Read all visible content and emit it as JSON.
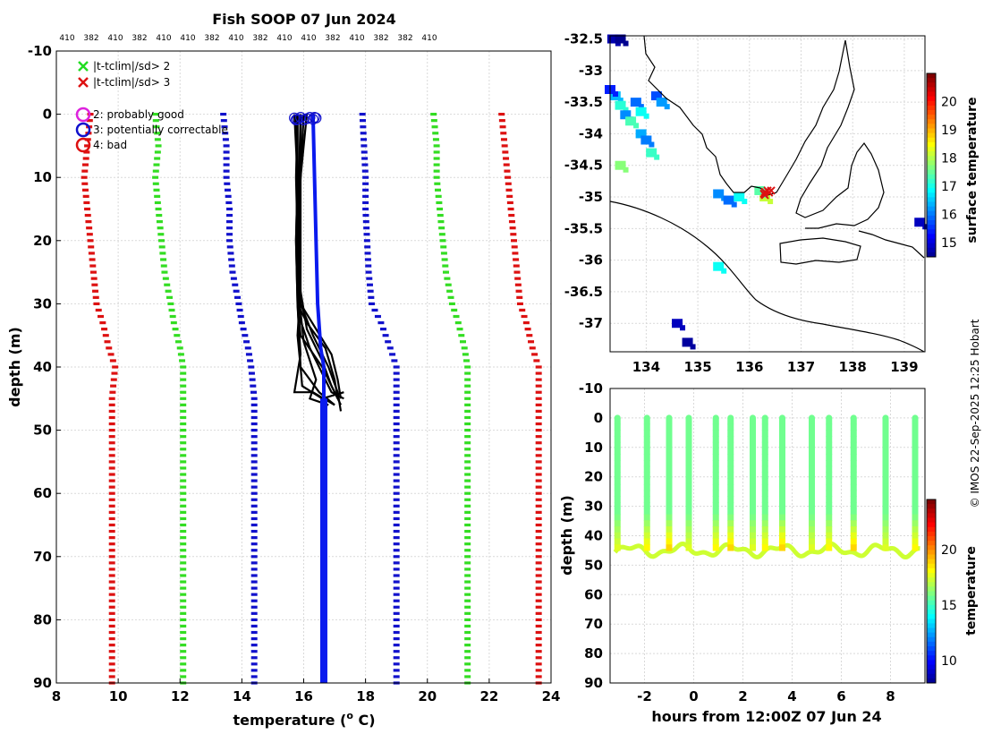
{
  "title": "Fish SOOP 07 Jun 2024",
  "credit": "© IMOS 22-Sep-2025 12:25 Hobart",
  "top_tick_labels": [
    "410",
    "382",
    "410",
    "382",
    "410",
    "410",
    "382",
    "410",
    "382",
    "410",
    "410",
    "382",
    "410",
    "382",
    "382",
    "410"
  ],
  "colors": {
    "red": "#dd1111",
    "green": "#33dd22",
    "blue": "#1111cc",
    "profile": "#000000",
    "mean_profile": "#0a1aee",
    "magenta": "#dd22dd"
  },
  "legend": {
    "cross_items": [
      {
        "label": "|t-tclim|/sd> 2",
        "color": "#22dd22"
      },
      {
        "label": "|t-tclim|/sd> 3",
        "color": "#dd1111"
      }
    ],
    "circle_items": [
      {
        "label": "2: probably good",
        "color": "#dd22dd"
      },
      {
        "label": "3: potentially correctable",
        "color": "#1111cc"
      },
      {
        "label": "4: bad",
        "color": "#dd1111"
      }
    ]
  },
  "chart_data": [
    {
      "type": "line",
      "name": "profile",
      "xlabel": "temperature (",
      "xlabel_sup": "o",
      "xlabel_end": " C)",
      "ylabel": "depth (m)",
      "xlim": [
        8,
        24
      ],
      "ylim": [
        -10,
        90
      ],
      "xticks": [
        8,
        10,
        12,
        14,
        16,
        18,
        20,
        22,
        24
      ],
      "yticks": [
        -10,
        0,
        10,
        20,
        30,
        40,
        50,
        60,
        70,
        80,
        90
      ],
      "grid": true,
      "climatology": [
        {
          "name": "-3 sd",
          "color": "red",
          "points": [
            [
              9.1,
              0
            ],
            [
              9.0,
              5
            ],
            [
              8.9,
              10
            ],
            [
              9.0,
              15
            ],
            [
              9.1,
              20
            ],
            [
              9.2,
              25
            ],
            [
              9.3,
              30
            ],
            [
              9.5,
              33
            ],
            [
              9.7,
              37
            ],
            [
              9.9,
              40
            ],
            [
              9.8,
              45
            ],
            [
              9.8,
              90
            ]
          ]
        },
        {
          "name": "-2 sd",
          "color": "green",
          "points": [
            [
              11.2,
              0
            ],
            [
              11.3,
              5
            ],
            [
              11.2,
              10
            ],
            [
              11.3,
              15
            ],
            [
              11.4,
              20
            ],
            [
              11.5,
              25
            ],
            [
              11.7,
              30
            ],
            [
              11.8,
              33
            ],
            [
              12.0,
              37
            ],
            [
              12.1,
              40
            ],
            [
              12.1,
              45
            ],
            [
              12.1,
              90
            ]
          ]
        },
        {
          "name": "-1 sd",
          "color": "blue",
          "points": [
            [
              13.4,
              0
            ],
            [
              13.5,
              5
            ],
            [
              13.5,
              10
            ],
            [
              13.6,
              15
            ],
            [
              13.6,
              20
            ],
            [
              13.7,
              25
            ],
            [
              13.9,
              30
            ],
            [
              14.0,
              33
            ],
            [
              14.2,
              37
            ],
            [
              14.3,
              40
            ],
            [
              14.4,
              45
            ],
            [
              14.4,
              90
            ]
          ]
        },
        {
          "name": "+1 sd",
          "color": "blue",
          "points": [
            [
              17.9,
              0
            ],
            [
              17.95,
              5
            ],
            [
              18.0,
              10
            ],
            [
              18.0,
              15
            ],
            [
              18.05,
              20
            ],
            [
              18.1,
              25
            ],
            [
              18.2,
              30
            ],
            [
              18.5,
              33
            ],
            [
              18.8,
              37
            ],
            [
              19.0,
              40
            ],
            [
              19.0,
              45
            ],
            [
              19.0,
              90
            ]
          ]
        },
        {
          "name": "+2 sd",
          "color": "green",
          "points": [
            [
              20.2,
              0
            ],
            [
              20.3,
              5
            ],
            [
              20.3,
              10
            ],
            [
              20.4,
              15
            ],
            [
              20.5,
              20
            ],
            [
              20.6,
              25
            ],
            [
              20.8,
              30
            ],
            [
              21.0,
              33
            ],
            [
              21.2,
              37
            ],
            [
              21.3,
              40
            ],
            [
              21.3,
              45
            ],
            [
              21.3,
              90
            ]
          ]
        },
        {
          "name": "+3 sd",
          "color": "red",
          "points": [
            [
              22.4,
              0
            ],
            [
              22.5,
              5
            ],
            [
              22.6,
              10
            ],
            [
              22.7,
              15
            ],
            [
              22.8,
              20
            ],
            [
              22.9,
              25
            ],
            [
              23.0,
              30
            ],
            [
              23.2,
              33
            ],
            [
              23.4,
              37
            ],
            [
              23.6,
              40
            ],
            [
              23.6,
              45
            ],
            [
              23.6,
              90
            ]
          ]
        }
      ],
      "mean_profile": [
        [
          16.3,
          0
        ],
        [
          16.35,
          10
        ],
        [
          16.4,
          20
        ],
        [
          16.45,
          30
        ],
        [
          16.55,
          37
        ],
        [
          16.65,
          40
        ],
        [
          16.65,
          45
        ],
        [
          16.65,
          90
        ]
      ],
      "observed_profiles": [
        [
          [
            15.8,
            0
          ],
          [
            15.8,
            10
          ],
          [
            15.8,
            20
          ],
          [
            15.8,
            30
          ],
          [
            15.9,
            35
          ],
          [
            16.6,
            40
          ],
          [
            17.0,
            44
          ],
          [
            17.2,
            46
          ]
        ],
        [
          [
            15.9,
            0
          ],
          [
            15.9,
            10
          ],
          [
            15.85,
            20
          ],
          [
            15.9,
            28
          ],
          [
            16.1,
            34
          ],
          [
            16.6,
            39
          ],
          [
            16.9,
            43
          ],
          [
            17.1,
            45
          ]
        ],
        [
          [
            15.7,
            0
          ],
          [
            15.8,
            10
          ],
          [
            15.75,
            20
          ],
          [
            15.8,
            30
          ],
          [
            15.9,
            38
          ],
          [
            15.7,
            44
          ],
          [
            16.3,
            44
          ],
          [
            17.0,
            46
          ]
        ],
        [
          [
            16.0,
            0
          ],
          [
            15.9,
            10
          ],
          [
            15.9,
            20
          ],
          [
            15.9,
            30
          ],
          [
            16.3,
            35
          ],
          [
            16.8,
            40
          ],
          [
            17.1,
            44
          ],
          [
            17.2,
            47
          ]
        ],
        [
          [
            15.8,
            0
          ],
          [
            15.75,
            10
          ],
          [
            15.8,
            20
          ],
          [
            15.85,
            32
          ],
          [
            16.2,
            37
          ],
          [
            16.6,
            41
          ],
          [
            16.9,
            44
          ],
          [
            17.3,
            45
          ]
        ],
        [
          [
            15.9,
            0
          ],
          [
            15.85,
            10
          ],
          [
            15.85,
            20
          ],
          [
            15.9,
            30
          ],
          [
            16.4,
            34
          ],
          [
            16.9,
            38
          ],
          [
            17.1,
            42
          ],
          [
            17.2,
            45
          ]
        ],
        [
          [
            15.75,
            0
          ],
          [
            15.8,
            10
          ],
          [
            15.8,
            20
          ],
          [
            15.85,
            29
          ],
          [
            16.0,
            36
          ],
          [
            16.4,
            42
          ],
          [
            16.2,
            45
          ],
          [
            16.8,
            46
          ]
        ],
        [
          [
            16.1,
            0
          ],
          [
            15.9,
            10
          ],
          [
            15.8,
            20
          ],
          [
            15.8,
            30
          ],
          [
            15.9,
            40
          ],
          [
            15.95,
            43
          ],
          [
            16.6,
            45
          ],
          [
            17.3,
            44
          ]
        ],
        [
          [
            15.8,
            0
          ],
          [
            15.8,
            10
          ],
          [
            15.75,
            20
          ],
          [
            15.8,
            30
          ],
          [
            16.1,
            33
          ],
          [
            16.7,
            37
          ],
          [
            17.0,
            42
          ],
          [
            17.1,
            45
          ]
        ],
        [
          [
            15.9,
            0
          ],
          [
            15.9,
            10
          ],
          [
            15.8,
            20
          ],
          [
            15.85,
            31
          ],
          [
            15.8,
            35
          ],
          [
            15.9,
            40
          ],
          [
            16.5,
            44
          ],
          [
            17.0,
            46
          ]
        ]
      ],
      "flag_markers": [
        [
          15.7,
          0.6
        ],
        [
          15.8,
          0.8
        ],
        [
          15.9,
          0.5
        ],
        [
          16.0,
          0.9
        ],
        [
          16.1,
          0.7
        ],
        [
          16.2,
          0.5
        ],
        [
          16.3,
          0.8
        ],
        [
          16.4,
          0.6
        ],
        [
          15.75,
          0.9
        ],
        [
          16.35,
          0.5
        ]
      ]
    },
    {
      "type": "heatmap",
      "name": "map",
      "colorbar_label": "surface temperature",
      "xlim": [
        133.3,
        139.4
      ],
      "ylim": [
        -37.45,
        -32.45
      ],
      "xticks": [
        134,
        135,
        136,
        137,
        138,
        139
      ],
      "yticks": [
        -32.5,
        -33,
        -33.5,
        -34,
        -34.5,
        -35,
        -35.5,
        -36,
        -36.5,
        -37
      ],
      "clim": [
        14.5,
        21
      ],
      "cbar_ticks": [
        15,
        16,
        17,
        18,
        19,
        20
      ],
      "grid": true,
      "track_markers": [
        [
          136.28,
          -34.95
        ],
        [
          136.3,
          -34.92
        ],
        [
          136.35,
          -34.9
        ],
        [
          136.38,
          -34.93
        ],
        [
          136.42,
          -34.9
        ],
        [
          136.3,
          -34.97
        ]
      ],
      "sst_patches": [
        {
          "lon": 133.4,
          "lat": -33.4,
          "temp": 16.5
        },
        {
          "lon": 133.5,
          "lat": -33.55,
          "temp": 17.2
        },
        {
          "lon": 133.6,
          "lat": -33.7,
          "temp": 16.2
        },
        {
          "lon": 133.8,
          "lat": -33.5,
          "temp": 16.0
        },
        {
          "lon": 133.9,
          "lat": -33.65,
          "temp": 17.0
        },
        {
          "lon": 134.2,
          "lat": -33.4,
          "temp": 15.8
        },
        {
          "lon": 134.3,
          "lat": -33.5,
          "temp": 16.3
        },
        {
          "lon": 133.7,
          "lat": -33.8,
          "temp": 17.4
        },
        {
          "lon": 133.9,
          "lat": -34.0,
          "temp": 16.4
        },
        {
          "lon": 134.0,
          "lat": -34.1,
          "temp": 16.1
        },
        {
          "lon": 134.1,
          "lat": -34.3,
          "temp": 17.3
        },
        {
          "lon": 135.4,
          "lat": -34.95,
          "temp": 16.2
        },
        {
          "lon": 135.6,
          "lat": -35.05,
          "temp": 16.0
        },
        {
          "lon": 135.8,
          "lat": -35.0,
          "temp": 17.0
        },
        {
          "lon": 136.3,
          "lat": -35.0,
          "temp": 18.2
        },
        {
          "lon": 136.2,
          "lat": -34.9,
          "temp": 17.5
        },
        {
          "lon": 135.4,
          "lat": -36.1,
          "temp": 17.0
        },
        {
          "lon": 133.3,
          "lat": -33.3,
          "temp": 15.5
        },
        {
          "lon": 133.35,
          "lat": -32.5,
          "temp": 14.8
        },
        {
          "lon": 133.5,
          "lat": -32.5,
          "temp": 14.6
        },
        {
          "lon": 134.8,
          "lat": -37.3,
          "temp": 14.7
        },
        {
          "lon": 134.6,
          "lat": -37.0,
          "temp": 14.9
        },
        {
          "lon": 139.3,
          "lat": -35.4,
          "temp": 14.9
        },
        {
          "lon": 133.5,
          "lat": -34.5,
          "temp": 17.8
        }
      ]
    },
    {
      "type": "scatter",
      "name": "time-depth",
      "xlabel": "hours from 12:00Z 07 Jun 24",
      "ylabel": "depth (m)",
      "colorbar_label": "temperature",
      "xlim": [
        -3.4,
        9.4
      ],
      "ylim": [
        -10,
        90
      ],
      "xticks": [
        -2,
        0,
        2,
        4,
        6,
        8
      ],
      "yticks": [
        -10,
        0,
        10,
        20,
        30,
        40,
        50,
        60,
        70,
        80,
        90
      ],
      "clim": [
        8,
        24.5
      ],
      "cbar_ticks": [
        10,
        15,
        20
      ],
      "surface_temp": 16.0,
      "bottom_temp": 19.5,
      "bottom_depth": 45,
      "casts": [
        -3.1,
        -1.9,
        -1.0,
        -0.2,
        0.9,
        1.5,
        2.4,
        2.9,
        3.6,
        4.8,
        5.5,
        6.5,
        7.8,
        9.0
      ]
    }
  ]
}
